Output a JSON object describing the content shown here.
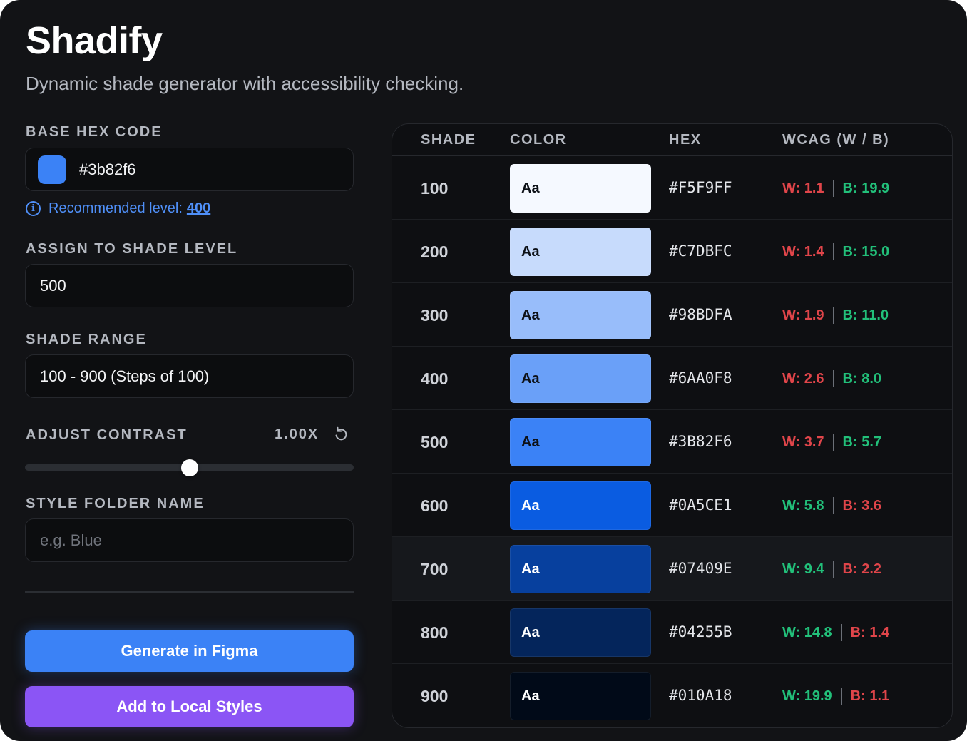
{
  "app": {
    "title": "Shadify",
    "subtitle": "Dynamic shade generator with accessibility checking."
  },
  "form": {
    "base_hex_label": "BASE HEX CODE",
    "base_hex_value": "#3b82f6",
    "base_swatch_color": "#3b82f6",
    "recommended_text": "Recommended level:",
    "recommended_value": "400",
    "shade_level_label": "ASSIGN TO SHADE LEVEL",
    "shade_level_value": "500",
    "shade_range_label": "SHADE RANGE",
    "shade_range_value": "100 - 900 (Steps of 100)",
    "contrast_label": "ADJUST CONTRAST",
    "contrast_value": "1.00X",
    "contrast_slider_fraction": 0.5,
    "folder_label": "STYLE FOLDER NAME",
    "folder_placeholder": "e.g. Blue",
    "folder_value": ""
  },
  "buttons": {
    "generate": "Generate in Figma",
    "add_local": "Add to Local Styles"
  },
  "table": {
    "headers": {
      "shade": "SHADE",
      "color": "COLOR",
      "hex": "HEX",
      "wcag": "WCAG (W / B)"
    },
    "rows": [
      {
        "shade": "100",
        "sample": "Aa",
        "hex": "#F5F9FF",
        "bg": "#F5F9FF",
        "fg": "#0d1117",
        "w": "W: 1.1",
        "b": "B: 19.9",
        "w_status": "fail",
        "b_status": "pass"
      },
      {
        "shade": "200",
        "sample": "Aa",
        "hex": "#C7DBFC",
        "bg": "#C7DBFC",
        "fg": "#0d1117",
        "w": "W: 1.4",
        "b": "B: 15.0",
        "w_status": "fail",
        "b_status": "pass"
      },
      {
        "shade": "300",
        "sample": "Aa",
        "hex": "#98BDFA",
        "bg": "#98BDFA",
        "fg": "#0d1117",
        "w": "W: 1.9",
        "b": "B: 11.0",
        "w_status": "fail",
        "b_status": "pass"
      },
      {
        "shade": "400",
        "sample": "Aa",
        "hex": "#6AA0F8",
        "bg": "#6AA0F8",
        "fg": "#0d1117",
        "w": "W: 2.6",
        "b": "B: 8.0",
        "w_status": "fail",
        "b_status": "pass"
      },
      {
        "shade": "500",
        "sample": "Aa",
        "hex": "#3B82F6",
        "bg": "#3B82F6",
        "fg": "#0d1117",
        "w": "W: 3.7",
        "b": "B: 5.7",
        "w_status": "fail",
        "b_status": "pass"
      },
      {
        "shade": "600",
        "sample": "Aa",
        "hex": "#0A5CE1",
        "bg": "#0A5CE1",
        "fg": "#ffffff",
        "w": "W: 5.8",
        "b": "B: 3.6",
        "w_status": "pass",
        "b_status": "fail"
      },
      {
        "shade": "700",
        "sample": "Aa",
        "hex": "#07409E",
        "bg": "#07409E",
        "fg": "#ffffff",
        "w": "W: 9.4",
        "b": "B: 2.2",
        "w_status": "pass",
        "b_status": "fail"
      },
      {
        "shade": "800",
        "sample": "Aa",
        "hex": "#04255B",
        "bg": "#04255B",
        "fg": "#ffffff",
        "w": "W: 14.8",
        "b": "B: 1.4",
        "w_status": "pass",
        "b_status": "fail"
      },
      {
        "shade": "900",
        "sample": "Aa",
        "hex": "#010A18",
        "bg": "#010A18",
        "fg": "#ffffff",
        "w": "W: 19.9",
        "b": "B: 1.1",
        "w_status": "pass",
        "b_status": "fail"
      }
    ],
    "highlighted_shade": "700"
  },
  "colors": {
    "pass": "#22c07a",
    "fail": "#e0454a",
    "accent": "#3b82f6",
    "purple": "#8b55f5",
    "link": "#4f8ff7"
  }
}
